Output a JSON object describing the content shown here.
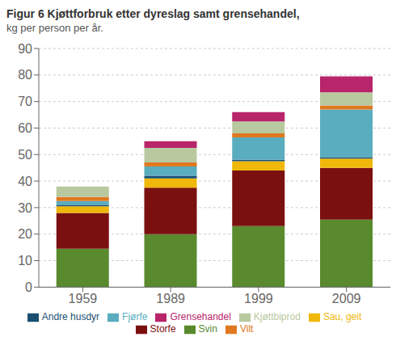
{
  "chart_data": {
    "type": "bar",
    "title": "Figur 6 Kjøttforbruk etter dyreslag samt grensehandel,",
    "subtitle": "kg per person per år.",
    "categories": [
      "1959",
      "1989",
      "1999",
      "2009"
    ],
    "series": [
      {
        "name": "Svin",
        "color": "#5a8a2e",
        "values": [
          14.5,
          20.0,
          23.0,
          25.5
        ]
      },
      {
        "name": "Storfe",
        "color": "#7b1010",
        "values": [
          13.5,
          17.5,
          21.0,
          19.5
        ]
      },
      {
        "name": "Sau, geit",
        "color": "#f0b80a",
        "values": [
          2.5,
          3.5,
          3.5,
          3.5
        ]
      },
      {
        "name": "Andre husdyr",
        "color": "#1a4f72",
        "values": [
          0.5,
          1.0,
          0.5,
          0.5
        ]
      },
      {
        "name": "Fjørfe",
        "color": "#5aadbe",
        "values": [
          1.5,
          3.5,
          8.5,
          18.0
        ]
      },
      {
        "name": "Vilt",
        "color": "#e07820",
        "values": [
          1.5,
          1.5,
          1.5,
          1.5
        ]
      },
      {
        "name": "Kjøttbiprod",
        "color": "#b8c9a0",
        "values": [
          4.0,
          5.5,
          4.5,
          5.0
        ]
      },
      {
        "name": "Grensehandel",
        "color": "#b8256a",
        "values": [
          0.0,
          2.5,
          3.5,
          6.0
        ]
      }
    ],
    "ylim": [
      0,
      90
    ],
    "yticks": [
      0,
      10,
      20,
      30,
      40,
      50,
      60,
      70,
      80,
      90
    ],
    "stacked": true,
    "grid": true,
    "legend": "bottom"
  }
}
